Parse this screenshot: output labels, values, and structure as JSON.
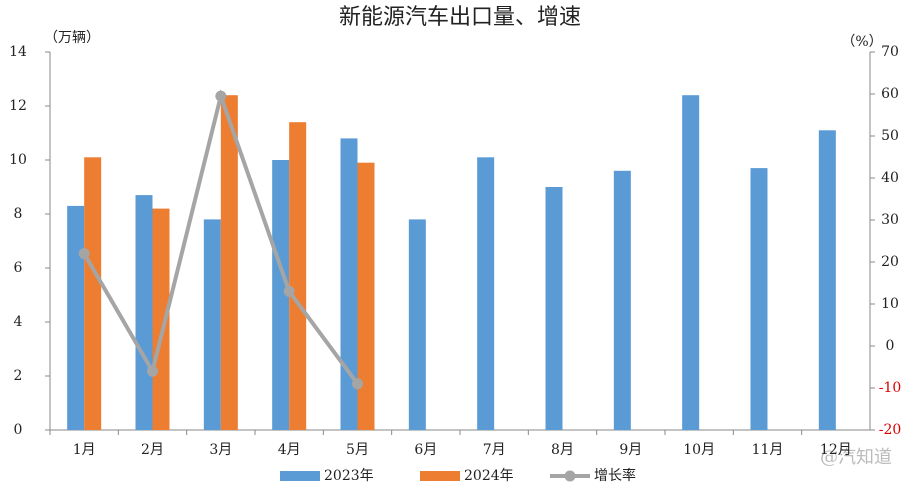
{
  "chart_data": {
    "type": "bar",
    "title": "新能源汽车出口量、增速",
    "y_label": "（万辆）",
    "y2_label": "（%）",
    "categories": [
      "1月",
      "2月",
      "3月",
      "4月",
      "5月",
      "6月",
      "7月",
      "8月",
      "9月",
      "10月",
      "11月",
      "12月"
    ],
    "series": [
      {
        "name": "2023年",
        "type": "bar",
        "color": "#5b9bd5",
        "values": [
          8.3,
          8.7,
          7.8,
          10.0,
          10.8,
          7.8,
          10.1,
          9.0,
          9.6,
          12.4,
          9.7,
          11.1
        ]
      },
      {
        "name": "2024年",
        "type": "bar",
        "color": "#ed7d31",
        "values": [
          10.1,
          8.2,
          12.4,
          11.4,
          9.9,
          null,
          null,
          null,
          null,
          null,
          null,
          null
        ]
      },
      {
        "name": "增长率",
        "type": "line",
        "axis": "y2",
        "color": "#a5a5a5",
        "values": [
          22,
          -6,
          59.5,
          13,
          -9,
          null,
          null,
          null,
          null,
          null,
          null,
          null
        ]
      }
    ],
    "ylim": [
      0,
      14
    ],
    "yticks": [
      0,
      2,
      4,
      6,
      8,
      10,
      12,
      14
    ],
    "y2lim": [
      -20,
      70
    ],
    "y2ticks": [
      -20,
      -10,
      0,
      10,
      20,
      30,
      40,
      50,
      60,
      70
    ],
    "y2_negative_color": "#e00000",
    "legend": "bottom",
    "annotation": "@汽知道"
  }
}
